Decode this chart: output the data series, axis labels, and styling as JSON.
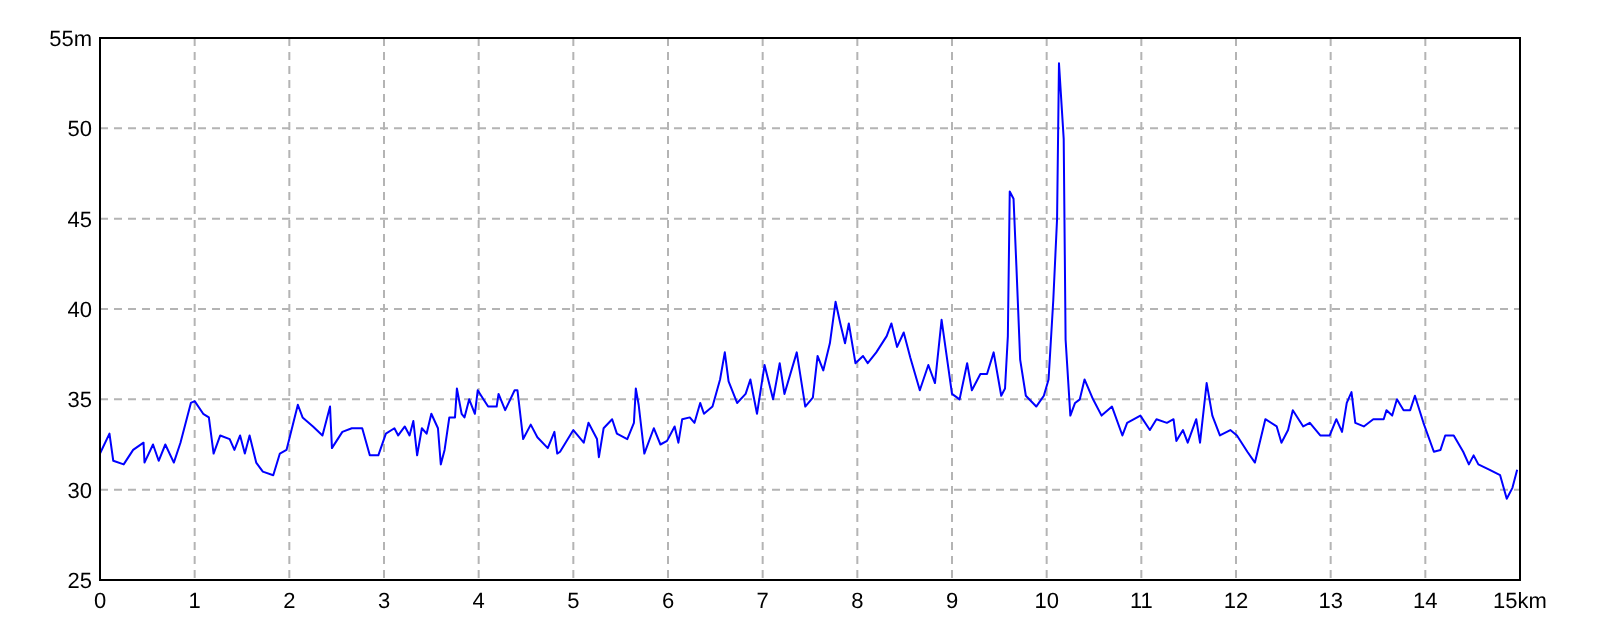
{
  "chart_data": {
    "type": "line",
    "grid": true,
    "marker": "none",
    "line_style": "solid",
    "xlim": [
      0,
      15
    ],
    "xticks": [
      0,
      1,
      2,
      3,
      4,
      5,
      6,
      7,
      8,
      9,
      10,
      11,
      12,
      13,
      14,
      {
        "value": 15,
        "label": "15km"
      }
    ],
    "ylim": [
      25,
      55
    ],
    "yticks": [
      25,
      30,
      35,
      40,
      45,
      50,
      {
        "value": 55,
        "label": "55m"
      }
    ],
    "x": [
      0,
      0.1,
      0.14,
      0.25,
      0.35,
      0.46,
      0.47,
      0.56,
      0.62,
      0.69,
      0.78,
      0.85,
      0.96,
      1.0,
      1.09,
      1.15,
      1.2,
      1.27,
      1.37,
      1.42,
      1.48,
      1.53,
      1.58,
      1.65,
      1.72,
      1.83,
      1.9,
      1.97,
      2.09,
      2.14,
      2.25,
      2.35,
      2.43,
      2.45,
      2.56,
      2.66,
      2.77,
      2.85,
      2.94,
      3.02,
      3.11,
      3.15,
      3.22,
      3.27,
      3.31,
      3.35,
      3.4,
      3.45,
      3.5,
      3.57,
      3.6,
      3.64,
      3.69,
      3.75,
      3.77,
      3.82,
      3.85,
      3.9,
      3.96,
      3.99,
      4.05,
      4.1,
      4.19,
      4.21,
      4.28,
      4.38,
      4.41,
      4.47,
      4.55,
      4.62,
      4.73,
      4.8,
      4.83,
      4.86,
      5.0,
      5.11,
      5.16,
      5.25,
      5.27,
      5.32,
      5.41,
      5.46,
      5.57,
      5.64,
      5.66,
      5.69,
      5.75,
      5.85,
      5.92,
      5.99,
      6.07,
      6.11,
      6.15,
      6.23,
      6.28,
      6.34,
      6.38,
      6.47,
      6.55,
      6.6,
      6.64,
      6.73,
      6.82,
      6.87,
      6.94,
      7.02,
      7.11,
      7.18,
      7.23,
      7.36,
      7.45,
      7.53,
      7.58,
      7.64,
      7.71,
      7.77,
      7.82,
      7.87,
      7.91,
      7.98,
      8.06,
      8.11,
      8.2,
      8.31,
      8.36,
      8.42,
      8.49,
      8.56,
      8.66,
      8.75,
      8.82,
      8.89,
      9.0,
      9.08,
      9.16,
      9.21,
      9.3,
      9.37,
      9.44,
      9.52,
      9.56,
      9.59,
      9.61,
      9.65,
      9.68,
      9.72,
      9.78,
      9.89,
      9.97,
      10.02,
      10.07,
      10.11,
      10.13,
      10.18,
      10.2,
      10.25,
      10.3,
      10.35,
      10.4,
      10.49,
      10.58,
      10.69,
      10.8,
      10.85,
      10.99,
      11.09,
      11.16,
      11.27,
      11.34,
      11.37,
      11.44,
      11.49,
      11.58,
      11.62,
      11.69,
      11.75,
      11.83,
      11.94,
      12.01,
      12.12,
      12.2,
      12.31,
      12.43,
      12.48,
      12.55,
      12.6,
      12.71,
      12.78,
      12.89,
      12.99,
      13.06,
      13.12,
      13.17,
      13.22,
      13.26,
      13.35,
      13.45,
      13.56,
      13.59,
      13.65,
      13.7,
      13.77,
      13.84,
      13.89,
      13.98,
      14.09,
      14.16,
      14.21,
      14.3,
      14.4,
      14.46,
      14.51,
      14.56,
      14.68,
      14.79,
      14.86,
      14.92,
      14.97
    ],
    "values": [
      32.0,
      33.1,
      31.6,
      31.4,
      32.2,
      32.6,
      31.5,
      32.5,
      31.6,
      32.5,
      31.5,
      32.6,
      34.8,
      34.9,
      34.2,
      34.0,
      32.0,
      33.0,
      32.8,
      32.2,
      33.0,
      32.0,
      33.0,
      31.5,
      31.0,
      30.8,
      32.0,
      32.2,
      34.7,
      34.0,
      33.5,
      33.0,
      34.6,
      32.3,
      33.2,
      33.4,
      33.4,
      31.9,
      31.9,
      33.1,
      33.4,
      33.0,
      33.5,
      33.0,
      33.8,
      31.9,
      33.4,
      33.1,
      34.2,
      33.4,
      31.4,
      32.2,
      34.0,
      34.0,
      35.6,
      34.2,
      34.0,
      35.0,
      34.2,
      35.5,
      35.0,
      34.6,
      34.6,
      35.3,
      34.4,
      35.5,
      35.5,
      32.8,
      33.6,
      32.9,
      32.3,
      33.2,
      32.0,
      32.1,
      33.3,
      32.6,
      33.7,
      32.8,
      31.8,
      33.4,
      33.9,
      33.1,
      32.8,
      33.7,
      35.6,
      34.7,
      32.0,
      33.4,
      32.5,
      32.7,
      33.5,
      32.6,
      33.9,
      34.0,
      33.7,
      34.8,
      34.2,
      34.6,
      36.1,
      37.6,
      36.0,
      34.8,
      35.3,
      36.1,
      34.2,
      36.9,
      35.0,
      37.0,
      35.3,
      37.6,
      34.6,
      35.1,
      37.4,
      36.6,
      38.1,
      40.4,
      39.2,
      38.1,
      39.2,
      37.0,
      37.4,
      37.0,
      37.6,
      38.5,
      39.2,
      37.9,
      38.7,
      37.3,
      35.5,
      36.9,
      35.9,
      39.4,
      35.3,
      35.0,
      37.0,
      35.5,
      36.4,
      36.4,
      37.6,
      35.2,
      35.6,
      38.5,
      46.5,
      46.1,
      42.4,
      37.2,
      35.2,
      34.6,
      35.2,
      36.1,
      40.5,
      45.0,
      53.6,
      49.4,
      38.3,
      34.1,
      34.8,
      35.0,
      36.1,
      35.0,
      34.1,
      34.6,
      33.0,
      33.7,
      34.1,
      33.3,
      33.9,
      33.7,
      33.9,
      32.7,
      33.3,
      32.6,
      33.9,
      32.6,
      35.9,
      34.1,
      33.0,
      33.3,
      33.0,
      32.1,
      31.5,
      33.9,
      33.5,
      32.6,
      33.3,
      34.4,
      33.5,
      33.7,
      33.0,
      33.0,
      33.9,
      33.2,
      34.8,
      35.4,
      33.7,
      33.5,
      33.9,
      33.9,
      34.4,
      34.1,
      35.0,
      34.4,
      34.4,
      35.2,
      33.7,
      32.1,
      32.2,
      33.0,
      33.0,
      32.1,
      31.4,
      31.9,
      31.4,
      31.1,
      30.8,
      29.5,
      30.1,
      31.1
    ],
    "color": "#0000ff"
  }
}
